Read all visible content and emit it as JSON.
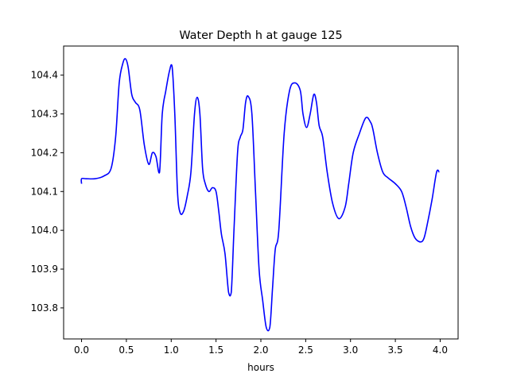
{
  "chart_data": {
    "type": "line",
    "title": "Water Depth h at gauge 125",
    "xlabel": "hours",
    "ylabel": "",
    "xlim": [
      -0.2,
      4.2
    ],
    "ylim": [
      103.72,
      104.475
    ],
    "xticks": [
      0.0,
      0.5,
      1.0,
      1.5,
      2.0,
      2.5,
      3.0,
      3.5,
      4.0
    ],
    "xtick_labels": [
      "0.0",
      "0.5",
      "1.0",
      "1.5",
      "2.0",
      "2.5",
      "3.0",
      "3.5",
      "4.0"
    ],
    "yticks": [
      103.8,
      103.9,
      104.0,
      104.1,
      104.2,
      104.3,
      104.4
    ],
    "ytick_labels": [
      "103.8",
      "103.9",
      "104.0",
      "104.1",
      "104.2",
      "104.3",
      "104.4"
    ],
    "grid": false,
    "series": [
      {
        "color": "#0000ff",
        "x": [
          0.0,
          0.0,
          0.05,
          0.15,
          0.25,
          0.33,
          0.38,
          0.42,
          0.46,
          0.49,
          0.52,
          0.56,
          0.6,
          0.65,
          0.7,
          0.75,
          0.79,
          0.83,
          0.87,
          0.9,
          0.94,
          0.98,
          1.01,
          1.04,
          1.07,
          1.1,
          1.14,
          1.18,
          1.22,
          1.26,
          1.29,
          1.32,
          1.35,
          1.38,
          1.42,
          1.46,
          1.5,
          1.53,
          1.56,
          1.6,
          1.64,
          1.67,
          1.7,
          1.74,
          1.77,
          1.8,
          1.83,
          1.86,
          1.9,
          1.94,
          1.98,
          2.02,
          2.06,
          2.1,
          2.13,
          2.16,
          2.2,
          2.26,
          2.32,
          2.38,
          2.44,
          2.47,
          2.51,
          2.55,
          2.59,
          2.62,
          2.65,
          2.69,
          2.74,
          2.8,
          2.87,
          2.94,
          2.98,
          3.03,
          3.1,
          3.17,
          3.22,
          3.25,
          3.3,
          3.36,
          3.42,
          3.5,
          3.57,
          3.62,
          3.67,
          3.72,
          3.78,
          3.82,
          3.86,
          3.91,
          3.96,
          3.99
        ],
        "y": [
          104.12,
          104.133,
          104.133,
          104.133,
          104.14,
          104.16,
          104.24,
          104.38,
          104.43,
          104.442,
          104.42,
          104.35,
          104.33,
          104.31,
          104.22,
          104.17,
          104.2,
          104.19,
          104.15,
          104.3,
          104.36,
          104.41,
          104.422,
          104.3,
          104.1,
          104.045,
          104.05,
          104.09,
          104.15,
          104.3,
          104.343,
          104.3,
          104.16,
          104.12,
          104.1,
          104.11,
          104.1,
          104.05,
          103.99,
          103.94,
          103.84,
          103.84,
          104.0,
          104.2,
          104.24,
          104.26,
          104.33,
          104.345,
          104.3,
          104.1,
          103.9,
          103.82,
          103.75,
          103.75,
          103.85,
          103.95,
          104.0,
          104.25,
          104.36,
          104.38,
          104.36,
          104.3,
          104.265,
          104.3,
          104.35,
          104.33,
          104.27,
          104.24,
          104.15,
          104.07,
          104.03,
          104.06,
          104.12,
          104.2,
          104.25,
          104.29,
          104.28,
          104.26,
          104.2,
          104.15,
          104.135,
          104.12,
          104.1,
          104.06,
          104.01,
          103.98,
          103.97,
          103.98,
          104.02,
          104.08,
          104.15,
          104.15
        ]
      }
    ]
  }
}
